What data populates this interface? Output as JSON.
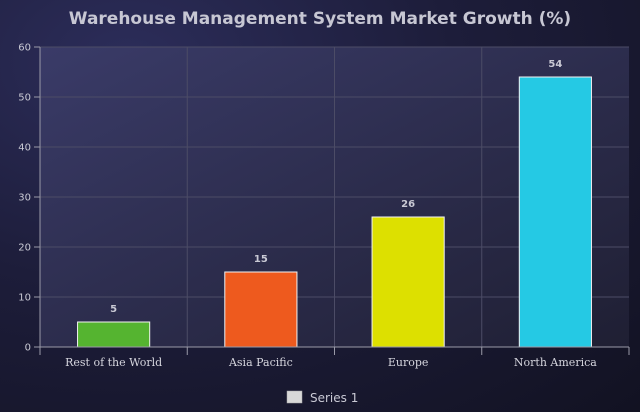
{
  "chart_data": {
    "type": "bar",
    "title": "Warehouse Management System Market Growth (%)",
    "categories": [
      "Rest of the World",
      "Asia Pacific",
      "Europe",
      "North America"
    ],
    "series": [
      {
        "name": "Series 1",
        "values": [
          5,
          15,
          26,
          54
        ]
      }
    ],
    "bar_colors": [
      "#55b430",
      "#ee5a1e",
      "#dde000",
      "#25c9e4"
    ],
    "legend_swatch_color": "#d8d8d8",
    "xlabel": "",
    "ylabel": "",
    "ylim": [
      0,
      60
    ],
    "yticks": [
      0,
      10,
      20,
      30,
      40,
      50,
      60
    ],
    "grid": true,
    "legend_position": "bottom-center",
    "data_labels": true
  }
}
